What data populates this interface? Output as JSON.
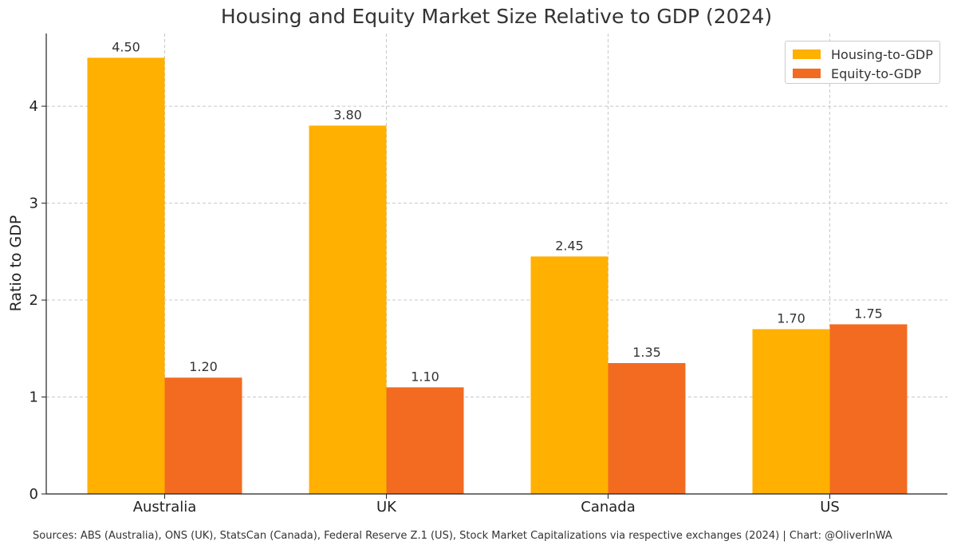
{
  "chart_data": {
    "type": "bar",
    "title": "Housing and Equity Market Size Relative to GDP (2024)",
    "xlabel": "",
    "ylabel": "Ratio to GDP",
    "categories": [
      "Australia",
      "UK",
      "Canada",
      "US"
    ],
    "series": [
      {
        "name": "Housing-to-GDP",
        "values": [
          4.5,
          3.8,
          2.45,
          1.7
        ],
        "color": "#FFB000"
      },
      {
        "name": "Equity-to-GDP",
        "values": [
          1.2,
          1.1,
          1.35,
          1.75
        ],
        "color": "#F26B21"
      }
    ],
    "data_labels": [
      [
        "4.50",
        "3.80",
        "2.45",
        "1.70"
      ],
      [
        "1.20",
        "1.10",
        "1.35",
        "1.75"
      ]
    ],
    "yticks": [
      0,
      1,
      2,
      3,
      4
    ],
    "ylim": [
      0,
      4.75
    ],
    "grid": true,
    "legend_position": "top-right"
  },
  "footer": {
    "source": "Sources: ABS (Australia), ONS (UK), StatsCan (Canada), Federal Reserve Z.1 (US), Stock Market Capitalizations via respective exchanges (2024) | Chart: @OliverInWA"
  },
  "colors": {
    "grid": "#c8c8c8",
    "axis": "#222222",
    "text": "#333333"
  }
}
